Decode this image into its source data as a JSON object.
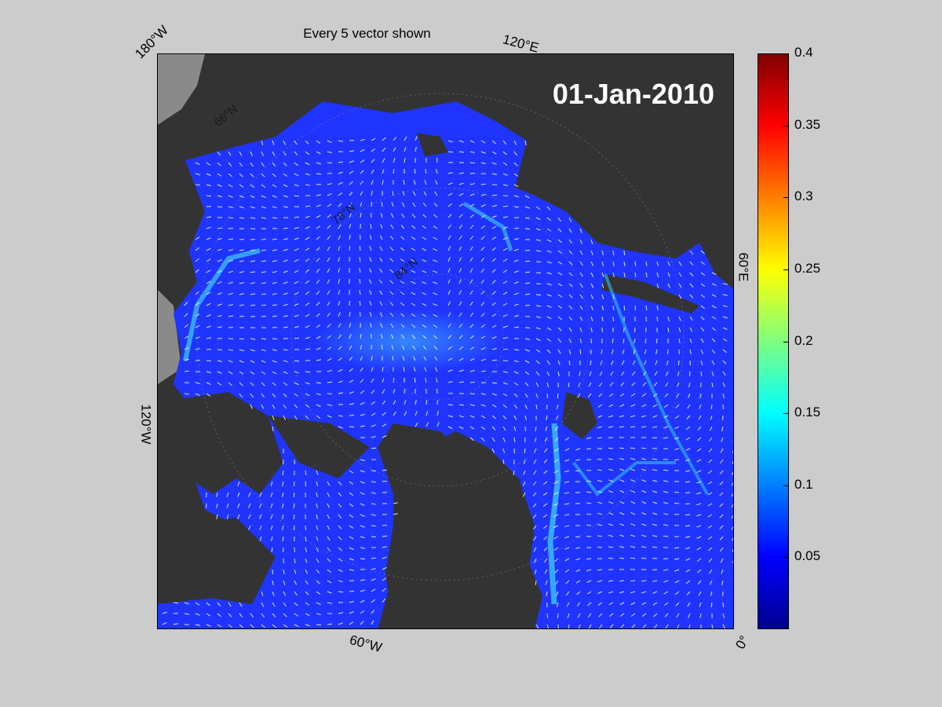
{
  "title": "Every 5 vector shown",
  "date_label": "01-Jan-2010",
  "longitude_labels": [
    "180°W",
    "120°E",
    "60°E",
    "0°",
    "60°W",
    "120°W"
  ],
  "latitude_labels": [
    "66°N",
    "78°N",
    "84°N"
  ],
  "colorbar": {
    "ticks": [
      "0.05",
      "0.1",
      "0.15",
      "0.2",
      "0.25",
      "0.3",
      "0.35",
      "0.4"
    ],
    "tick_values": [
      0.05,
      0.1,
      0.15,
      0.2,
      0.25,
      0.3,
      0.35,
      0.4
    ],
    "range": [
      0,
      0.4
    ],
    "colormap": [
      "#00008f",
      "#0000ff",
      "#00ffff",
      "#ffff00",
      "#ff0000",
      "#800000"
    ]
  },
  "colors": {
    "land": "#333333",
    "outside_domain": "#8a8a8a",
    "ocean_low": "#1a3cff",
    "fast_current": "#33ccff",
    "vectors": "#ffffff",
    "background": "#cccccc"
  },
  "vector_stride": 5
}
